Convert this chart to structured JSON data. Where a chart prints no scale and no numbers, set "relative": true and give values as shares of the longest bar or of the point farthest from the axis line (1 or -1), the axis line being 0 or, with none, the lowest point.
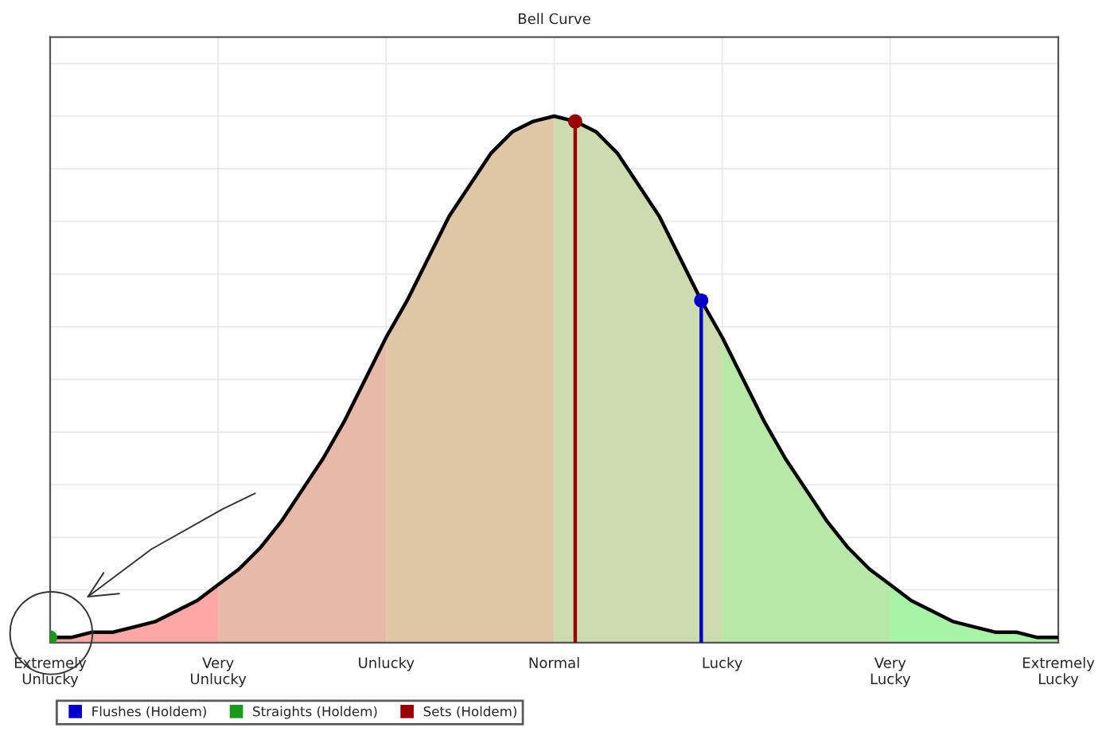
{
  "chart_data": {
    "type": "area",
    "title": "Bell Curve",
    "relative": true,
    "categories": [
      "Extremely\nUnlucky",
      null,
      null,
      null,
      null,
      null,
      null,
      null,
      "Very\nUnlucky",
      null,
      null,
      null,
      null,
      null,
      null,
      null,
      "Unlucky",
      null,
      null,
      null,
      null,
      null,
      null,
      null,
      "Normal",
      null,
      null,
      null,
      null,
      null,
      null,
      null,
      "Lucky",
      null,
      null,
      null,
      null,
      null,
      null,
      null,
      "Very\nLucky",
      null,
      null,
      null,
      null,
      null,
      null,
      null,
      "Extremely\nLucky"
    ],
    "grid": true,
    "legend": "bottom left",
    "series": [
      {
        "color": "#ffa6a6",
        "values": [
          0.01,
          0.01,
          0.02,
          0.02,
          0.03,
          0.04,
          0.06,
          0.08,
          0.11,
          null,
          null,
          null,
          null,
          null,
          null,
          null,
          null,
          null,
          null,
          null,
          null,
          null,
          null,
          null,
          null,
          null,
          null,
          null,
          null,
          null,
          null,
          null,
          null,
          null,
          null,
          null,
          null,
          null,
          null,
          null,
          null,
          null,
          null,
          null,
          null,
          null,
          null,
          null,
          null
        ]
      },
      {
        "color": "#e8b8a8",
        "values": [
          null,
          null,
          null,
          null,
          null,
          null,
          null,
          null,
          0.11,
          0.14,
          0.18,
          0.23,
          0.29,
          0.35,
          0.42,
          0.5,
          0.58,
          null,
          null,
          null,
          null,
          null,
          null,
          null,
          null,
          null,
          null,
          null,
          null,
          null,
          null,
          null,
          null,
          null,
          null,
          null,
          null,
          null,
          null,
          null,
          null,
          null,
          null,
          null,
          null,
          null,
          null,
          null,
          null
        ]
      },
      {
        "color": "#dfc7a6",
        "values": [
          null,
          null,
          null,
          null,
          null,
          null,
          null,
          null,
          null,
          null,
          null,
          null,
          null,
          null,
          null,
          null,
          0.58,
          0.65,
          0.73,
          0.81,
          0.87,
          0.93,
          0.97,
          0.99,
          1,
          null,
          null,
          null,
          null,
          null,
          null,
          null,
          null,
          null,
          null,
          null,
          null,
          null,
          null,
          null,
          null,
          null,
          null,
          null,
          null,
          null,
          null,
          null,
          null
        ]
      },
      {
        "color": "#cddcae",
        "values": [
          null,
          null,
          null,
          null,
          null,
          null,
          null,
          null,
          null,
          null,
          null,
          null,
          null,
          null,
          null,
          null,
          null,
          null,
          null,
          null,
          null,
          null,
          null,
          null,
          1,
          0.99,
          0.97,
          0.93,
          0.87,
          0.81,
          0.73,
          0.65,
          0.58,
          null,
          null,
          null,
          null,
          null,
          null,
          null,
          null,
          null,
          null,
          null,
          null,
          null,
          null,
          null,
          null
        ]
      },
      {
        "color": "#b8e8a8",
        "values": [
          null,
          null,
          null,
          null,
          null,
          null,
          null,
          null,
          null,
          null,
          null,
          null,
          null,
          null,
          null,
          null,
          null,
          null,
          null,
          null,
          null,
          null,
          null,
          null,
          null,
          null,
          null,
          null,
          null,
          null,
          null,
          null,
          0.58,
          0.5,
          0.42,
          0.35,
          0.29,
          0.23,
          0.18,
          0.14,
          0.11,
          null,
          null,
          null,
          null,
          null,
          null,
          null,
          null
        ]
      },
      {
        "color": "#a6f5a6",
        "values": [
          null,
          null,
          null,
          null,
          null,
          null,
          null,
          null,
          null,
          null,
          null,
          null,
          null,
          null,
          null,
          null,
          null,
          null,
          null,
          null,
          null,
          null,
          null,
          null,
          null,
          null,
          null,
          null,
          null,
          null,
          null,
          null,
          null,
          null,
          null,
          null,
          null,
          null,
          null,
          null,
          0.11,
          0.08,
          0.06,
          0.04,
          0.03,
          0.02,
          0.02,
          0.01,
          0.01
        ]
      },
      {
        "type": "line",
        "color": "#000000",
        "values": [
          0.01,
          0.01,
          0.02,
          0.02,
          0.03,
          0.04,
          0.06,
          0.08,
          0.11,
          0.14,
          0.18,
          0.23,
          0.29,
          0.35,
          0.42,
          0.5,
          0.58,
          0.65,
          0.73,
          0.81,
          0.87,
          0.93,
          0.97,
          0.99,
          1,
          0.99,
          0.97,
          0.93,
          0.87,
          0.81,
          0.73,
          0.65,
          0.58,
          0.5,
          0.42,
          0.35,
          0.29,
          0.23,
          0.18,
          0.14,
          0.11,
          0.08,
          0.06,
          0.04,
          0.03,
          0.02,
          0.02,
          0.01,
          0.01
        ]
      },
      {
        "type": "lollipop",
        "name": "Flushes (Holdem)",
        "color": "#0000cc",
        "values": [
          null,
          null,
          null,
          null,
          null,
          null,
          null,
          null,
          null,
          null,
          null,
          null,
          null,
          null,
          null,
          null,
          null,
          null,
          null,
          null,
          null,
          null,
          null,
          null,
          null,
          null,
          null,
          null,
          null,
          null,
          null,
          0.65,
          null,
          null,
          null,
          null,
          null,
          null,
          null,
          null,
          null,
          null,
          null,
          null,
          null,
          null,
          null,
          null,
          null
        ]
      },
      {
        "type": "lollipop",
        "name": "Straights (Holdem)",
        "color": "#1a9a1a",
        "values": [
          0.01,
          null,
          null,
          null,
          null,
          null,
          null,
          null,
          null,
          null,
          null,
          null,
          null,
          null,
          null,
          null,
          null,
          null,
          null,
          null,
          null,
          null,
          null,
          null,
          null,
          null,
          null,
          null,
          null,
          null,
          null,
          null,
          null,
          null,
          null,
          null,
          null,
          null,
          null,
          null,
          null,
          null,
          null,
          null,
          null,
          null,
          null,
          null,
          null
        ]
      },
      {
        "type": "lollipop",
        "name": "Sets (Holdem)",
        "color": "#990000",
        "values": [
          null,
          null,
          null,
          null,
          null,
          null,
          null,
          null,
          null,
          null,
          null,
          null,
          null,
          null,
          null,
          null,
          null,
          null,
          null,
          null,
          null,
          null,
          null,
          null,
          null,
          0.99,
          null,
          null,
          null,
          null,
          null,
          null,
          null,
          null,
          null,
          null,
          null,
          null,
          null,
          null,
          null,
          null,
          null,
          null,
          null,
          null,
          null,
          null,
          null
        ]
      }
    ]
  }
}
